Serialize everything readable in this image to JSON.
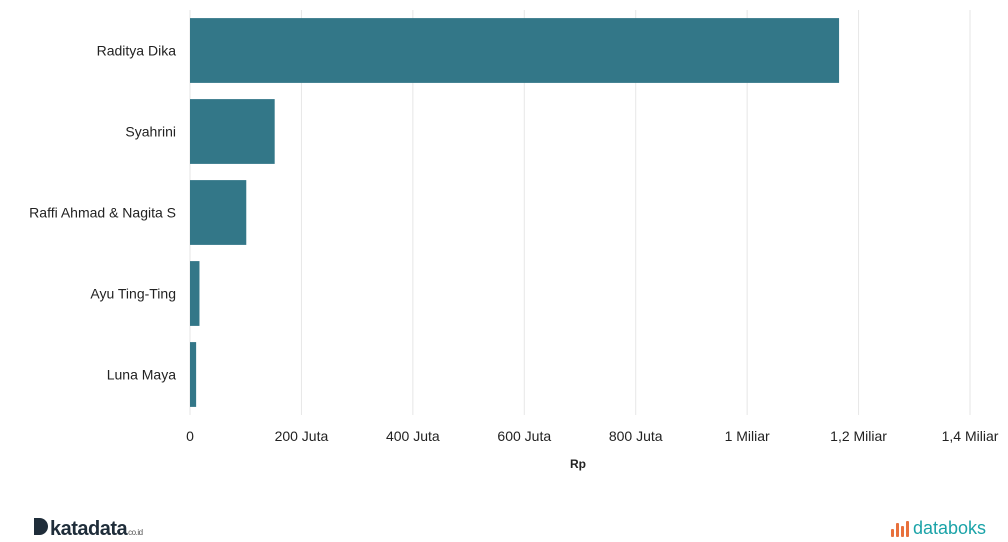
{
  "chart_data": {
    "type": "bar",
    "orientation": "horizontal",
    "categories": [
      "Raditya Dika",
      "Syahrini",
      "Raffi Ahmad & Nagita S",
      "Ayu Ting-Ting",
      "Luna Maya"
    ],
    "values": [
      1165000000,
      152000000,
      101000000,
      17000000,
      11000000
    ],
    "xlabel": "Rp",
    "xlim": [
      0,
      1400000000
    ],
    "xticks": [
      0,
      200000000,
      400000000,
      600000000,
      800000000,
      1000000000,
      1200000000,
      1400000000
    ],
    "xtick_labels": [
      "0",
      "200 Juta",
      "400 Juta",
      "600 Juta",
      "800 Juta",
      "1 Miliar",
      "1,2 Miliar",
      "1,4 Miliar"
    ],
    "grid": true,
    "bar_color": "#337788"
  },
  "branding": {
    "left_name": "katadata",
    "left_suffix": "co.id",
    "right_name": "databoks",
    "right_accent": "#e8703c",
    "right_color": "#1aa3a8"
  }
}
